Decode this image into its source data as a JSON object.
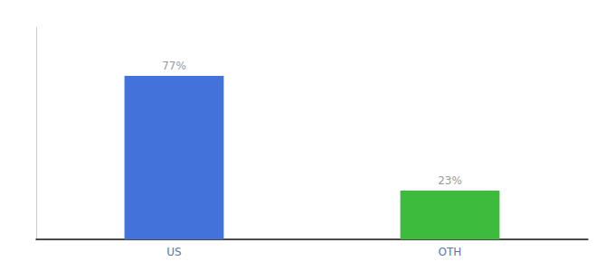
{
  "chart_data": {
    "type": "bar",
    "categories": [
      "US",
      "OTH"
    ],
    "values": [
      77,
      23
    ],
    "value_labels": [
      "77%",
      "23%"
    ],
    "colors": [
      "#4472db",
      "#3dbb3d"
    ],
    "ylim": [
      0,
      100
    ],
    "data_labels": true,
    "tick_labels": "x",
    "grid": false
  }
}
